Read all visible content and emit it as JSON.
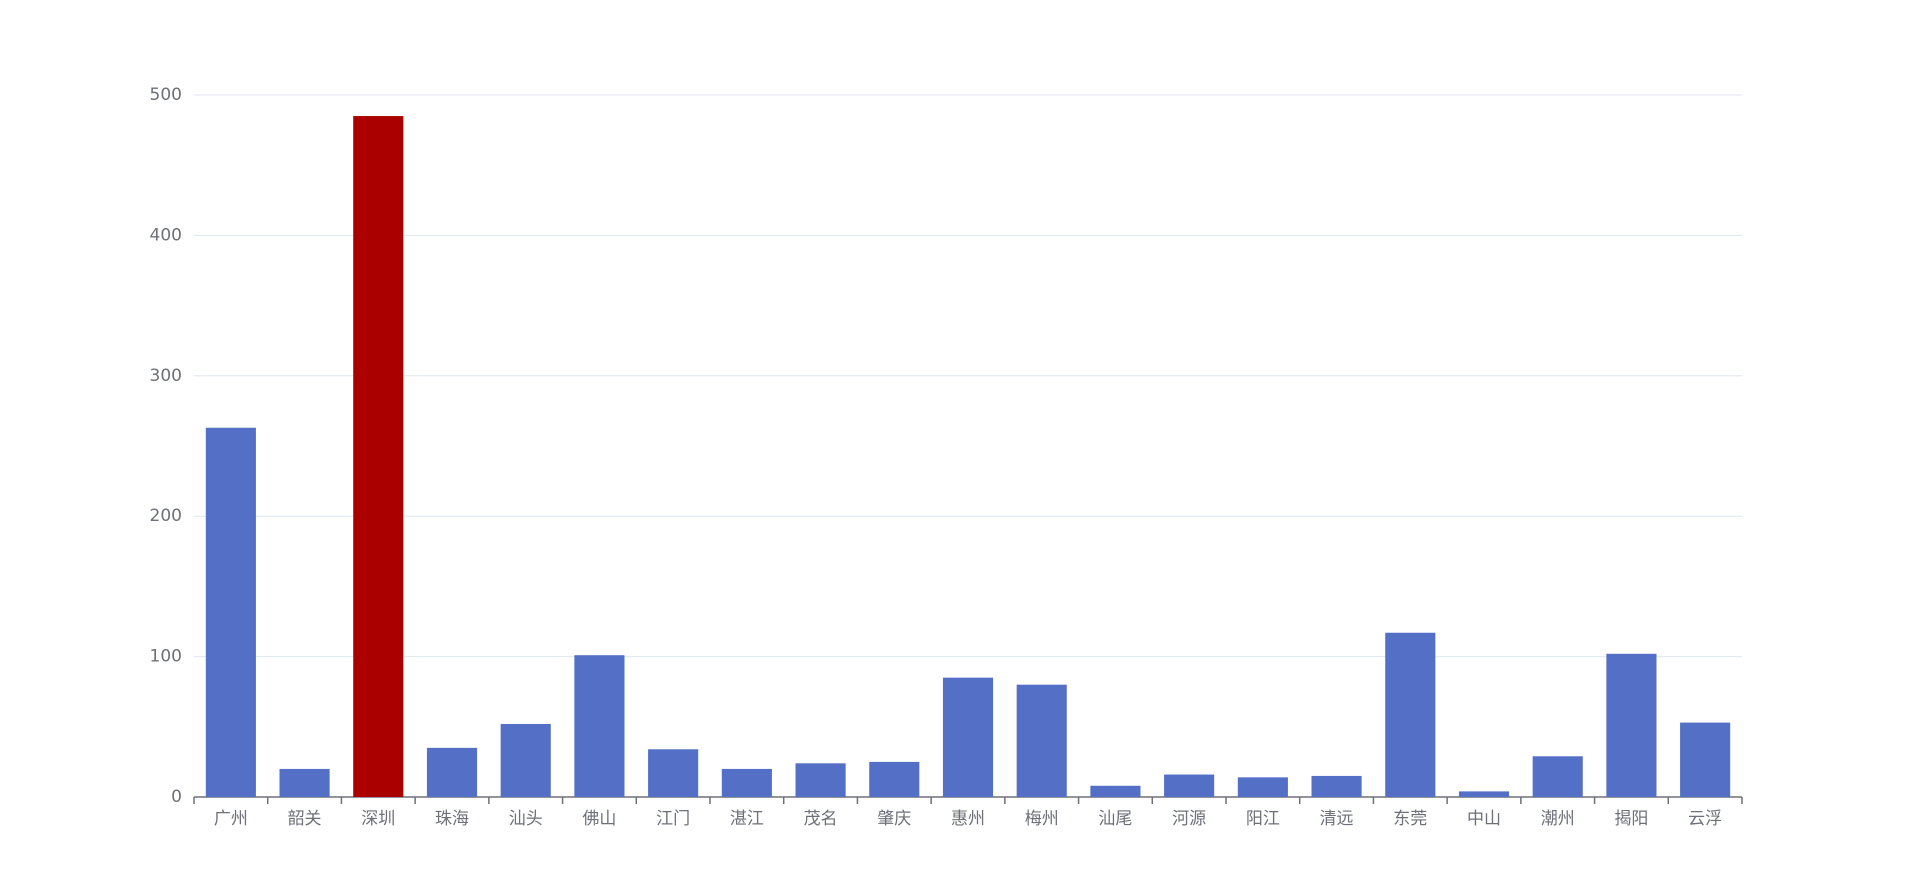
{
  "chart_data": {
    "type": "bar",
    "categories": [
      "广州",
      "韶关",
      "深圳",
      "珠海",
      "汕头",
      "佛山",
      "江门",
      "湛江",
      "茂名",
      "肇庆",
      "惠州",
      "梅州",
      "汕尾",
      "河源",
      "阳江",
      "清远",
      "东莞",
      "中山",
      "潮州",
      "揭阳",
      "云浮"
    ],
    "values": [
      263,
      20,
      485,
      35,
      52,
      101,
      34,
      20,
      24,
      25,
      85,
      80,
      8,
      16,
      14,
      15,
      117,
      4,
      29,
      102,
      53
    ],
    "colors": [
      "#5470c6",
      "#5470c6",
      "#aa0000",
      "#5470c6",
      "#5470c6",
      "#5470c6",
      "#5470c6",
      "#5470c6",
      "#5470c6",
      "#5470c6",
      "#5470c6",
      "#5470c6",
      "#5470c6",
      "#5470c6",
      "#5470c6",
      "#5470c6",
      "#5470c6",
      "#5470c6",
      "#5470c6",
      "#5470c6",
      "#5470c6"
    ],
    "ylim": [
      0,
      500
    ],
    "yticks": [
      0,
      100,
      200,
      300,
      400,
      500
    ],
    "grid": true
  }
}
